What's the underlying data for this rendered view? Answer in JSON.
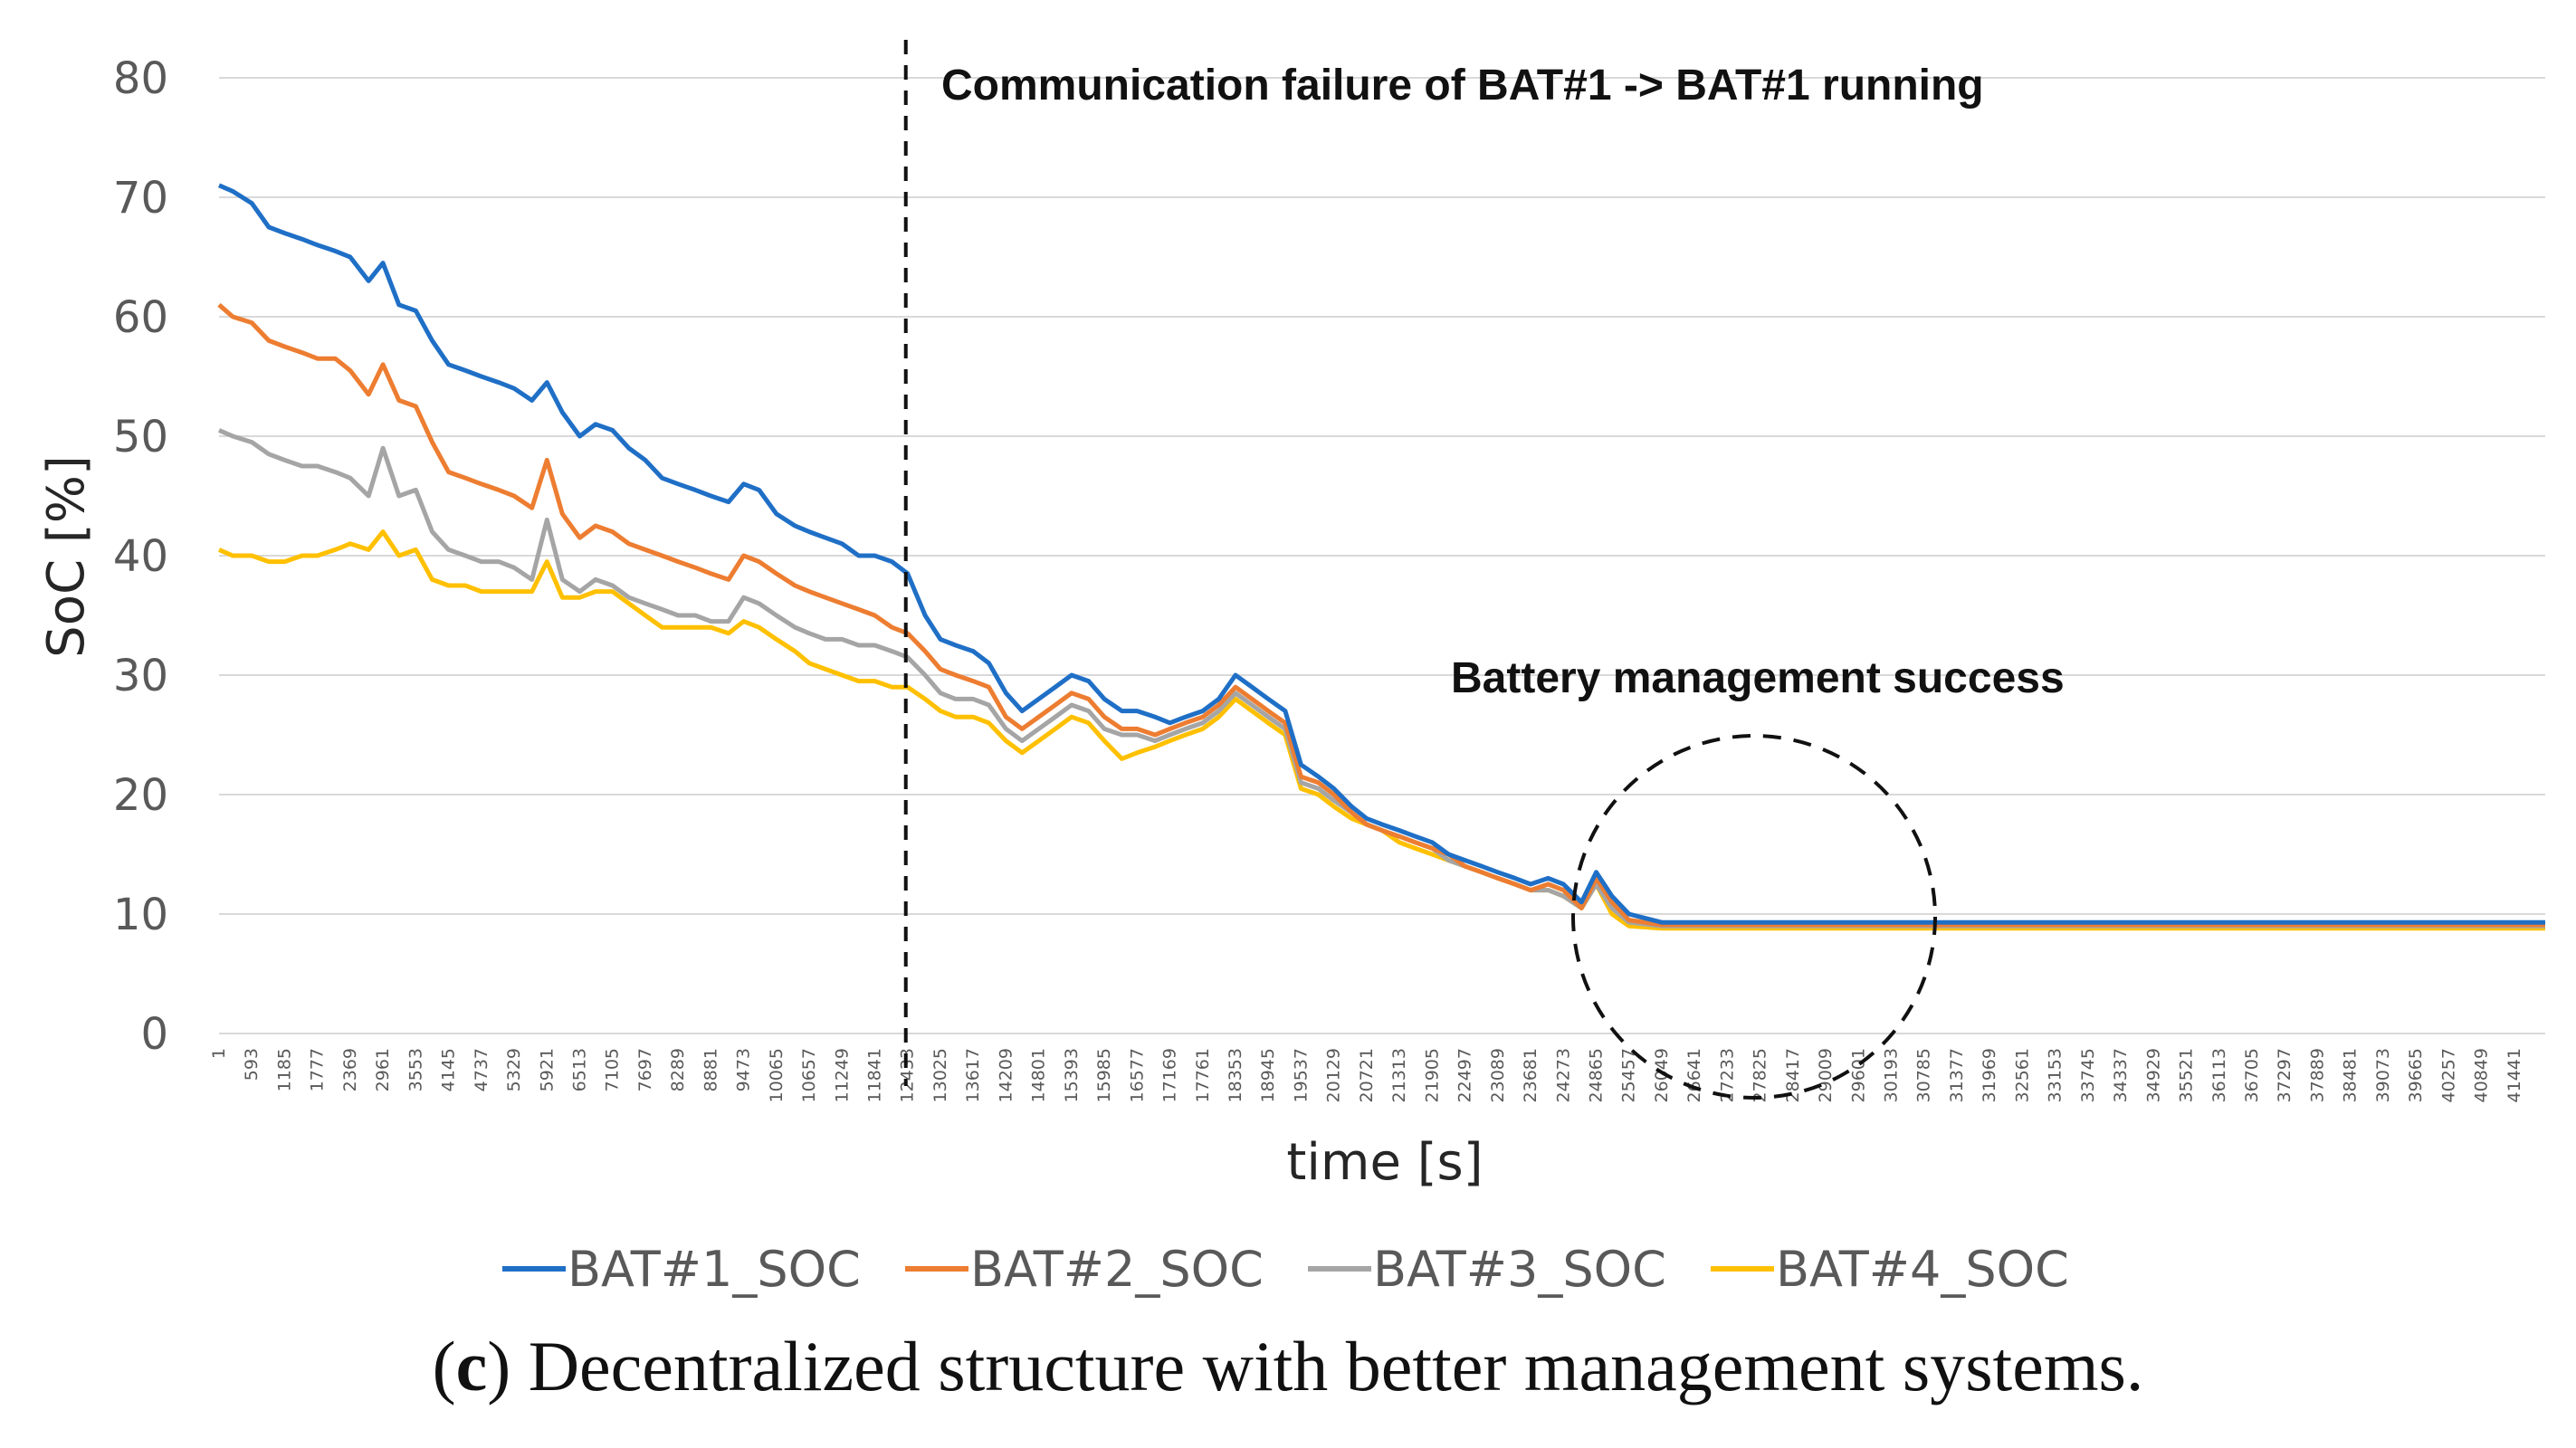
{
  "chart_data": {
    "type": "line",
    "ylabel": "SoC [%]",
    "xlabel": "time [s]",
    "ylim": [
      0,
      80
    ],
    "yticks": [
      0,
      10,
      20,
      30,
      40,
      50,
      60,
      70,
      80
    ],
    "grid": "horizontal",
    "x_tick_labels": [
      "1",
      "593",
      "1185",
      "1777",
      "2369",
      "2961",
      "3553",
      "4145",
      "4737",
      "5329",
      "5921",
      "6513",
      "7105",
      "7697",
      "8289",
      "8881",
      "9473",
      "10065",
      "10657",
      "11249",
      "11841",
      "12433",
      "13025",
      "13617",
      "14209",
      "14801",
      "15393",
      "15985",
      "16577",
      "17169",
      "17761",
      "18353",
      "18945",
      "19537",
      "20129",
      "20721",
      "21313",
      "21905",
      "22497",
      "23089",
      "23681",
      "24273",
      "24865",
      "25457",
      "26049",
      "26641",
      "27233",
      "27825",
      "28417",
      "29009",
      "29601",
      "30193",
      "30785",
      "31377",
      "31969",
      "32561",
      "33153",
      "33745",
      "34337",
      "34929",
      "35521",
      "36113",
      "36705",
      "37297",
      "37889",
      "38481",
      "39073",
      "39665",
      "40257",
      "40849",
      "41441"
    ],
    "x": [
      1,
      250,
      593,
      900,
      1185,
      1500,
      1777,
      2100,
      2369,
      2700,
      2961,
      3250,
      3553,
      3850,
      4145,
      4450,
      4737,
      5050,
      5329,
      5650,
      5921,
      6200,
      6513,
      6800,
      7105,
      7400,
      7697,
      8000,
      8289,
      8600,
      8881,
      9200,
      9473,
      9750,
      10065,
      10400,
      10657,
      10950,
      11249,
      11550,
      11841,
      12150,
      12433,
      12750,
      13025,
      13300,
      13617,
      13900,
      14209,
      14500,
      14801,
      15100,
      15393,
      15700,
      15985,
      16300,
      16577,
      16900,
      17169,
      17450,
      17761,
      18050,
      18353,
      18650,
      18945,
      19250,
      19537,
      19850,
      20129,
      20450,
      20721,
      21000,
      21313,
      21600,
      21905,
      22200,
      22497,
      22800,
      23089,
      23400,
      23681,
      24000,
      24273,
      24600,
      24865,
      25150,
      25457,
      26049,
      27000,
      28500,
      30000,
      32000,
      34000,
      36000,
      38000,
      40000,
      42000
    ],
    "series": [
      {
        "name": "BAT#1_SOC",
        "color": "#1f6fc6",
        "values": [
          71,
          70.5,
          69.5,
          67.5,
          67,
          66.5,
          66,
          65.5,
          65,
          63,
          64.5,
          61,
          60.5,
          58,
          56,
          55.5,
          55,
          54.5,
          54,
          53,
          54.5,
          52,
          50,
          51,
          50.5,
          49,
          48,
          46.5,
          46,
          45.5,
          45,
          44.5,
          46,
          45.5,
          43.5,
          42.5,
          42,
          41.5,
          41,
          40,
          40,
          39.5,
          38.5,
          35,
          33,
          32.5,
          32,
          31,
          28.5,
          27,
          28,
          29,
          30,
          29.5,
          28,
          27,
          27,
          26.5,
          26,
          26.5,
          27,
          28,
          30,
          29,
          28,
          27,
          22.5,
          21.5,
          20.5,
          19,
          18,
          17.5,
          17,
          16.5,
          16,
          15,
          14.5,
          14,
          13.5,
          13,
          12.5,
          13,
          12.5,
          11,
          13.5,
          11.5,
          10,
          9.3,
          9.3,
          9.3,
          9.3,
          9.3,
          9.3,
          9.3,
          9.3,
          9.3,
          9.3
        ]
      },
      {
        "name": "BAT#2_SOC",
        "color": "#ed7d31",
        "values": [
          61,
          60,
          59.5,
          58,
          57.5,
          57,
          56.5,
          56.5,
          55.5,
          53.5,
          56,
          53,
          52.5,
          49.5,
          47,
          46.5,
          46,
          45.5,
          45,
          44,
          48,
          43.5,
          41.5,
          42.5,
          42,
          41,
          40.5,
          40,
          39.5,
          39,
          38.5,
          38,
          40,
          39.5,
          38.5,
          37.5,
          37,
          36.5,
          36,
          35.5,
          35,
          34,
          33.5,
          32,
          30.5,
          30,
          29.5,
          29,
          26.5,
          25.5,
          26.5,
          27.5,
          28.5,
          28,
          26.5,
          25.5,
          25.5,
          25,
          25.5,
          26,
          26.5,
          27.5,
          29,
          28,
          27,
          26,
          21.5,
          21,
          20,
          18.5,
          17.5,
          17,
          16.5,
          16,
          15.5,
          15,
          14,
          13.5,
          13,
          12.5,
          12,
          12.5,
          12,
          10.5,
          13,
          11,
          9.5,
          9.1,
          9.1,
          9.1,
          9.1,
          9.1,
          9.1,
          9.1,
          9.1,
          9.1,
          9.1
        ]
      },
      {
        "name": "BAT#3_SOC",
        "color": "#a5a5a5",
        "values": [
          50.5,
          50,
          49.5,
          48.5,
          48,
          47.5,
          47.5,
          47,
          46.5,
          45,
          49,
          45,
          45.5,
          42,
          40.5,
          40,
          39.5,
          39.5,
          39,
          38,
          43,
          38,
          37,
          38,
          37.5,
          36.5,
          36,
          35.5,
          35,
          35,
          34.5,
          34.5,
          36.5,
          36,
          35,
          34,
          33.5,
          33,
          33,
          32.5,
          32.5,
          32,
          31.5,
          30,
          28.5,
          28,
          28,
          27.5,
          25.5,
          24.5,
          25.5,
          26.5,
          27.5,
          27,
          25.5,
          25,
          25,
          24.5,
          25,
          25.5,
          26,
          27,
          28.5,
          27.5,
          26.5,
          25.5,
          21,
          20.5,
          19.5,
          18.5,
          17.5,
          17,
          16.5,
          16,
          15.5,
          14.5,
          14,
          13.5,
          13,
          12.5,
          12,
          12,
          11.5,
          10.5,
          12.5,
          10.5,
          9.3,
          9.0,
          9.0,
          9.0,
          9.0,
          9.0,
          9.0,
          9.0,
          9.0,
          9.0,
          9.0
        ]
      },
      {
        "name": "BAT#4_SOC",
        "color": "#ffc000",
        "values": [
          40.5,
          40,
          40,
          39.5,
          39.5,
          40,
          40,
          40.5,
          41,
          40.5,
          42,
          40,
          40.5,
          38,
          37.5,
          37.5,
          37,
          37,
          37,
          37,
          39.5,
          36.5,
          36.5,
          37,
          37,
          36,
          35,
          34,
          34,
          34,
          34,
          33.5,
          34.5,
          34,
          33,
          32,
          31,
          30.5,
          30,
          29.5,
          29.5,
          29,
          29,
          28,
          27,
          26.5,
          26.5,
          26,
          24.5,
          23.5,
          24.5,
          25.5,
          26.5,
          26,
          24.5,
          23,
          23.5,
          24,
          24.5,
          25,
          25.5,
          26.5,
          28,
          27,
          26,
          25,
          20.5,
          20,
          19,
          18,
          17.5,
          17,
          16,
          15.5,
          15,
          14.5,
          14,
          13.5,
          13,
          12.5,
          12,
          12,
          11.5,
          10.5,
          12.5,
          10,
          9.0,
          8.8,
          8.8,
          8.8,
          8.8,
          8.8,
          8.8,
          8.8,
          8.8,
          8.8,
          8.8
        ]
      }
    ],
    "annotations": {
      "top": "Communication failure of BAT#1 -> BAT#1 running",
      "success": "Battery management success"
    },
    "event_x": 12433,
    "legend_position": "bottom"
  },
  "caption": {
    "prefix": "(",
    "letter": "c",
    "suffix": ") Decentralized structure with better management systems."
  }
}
